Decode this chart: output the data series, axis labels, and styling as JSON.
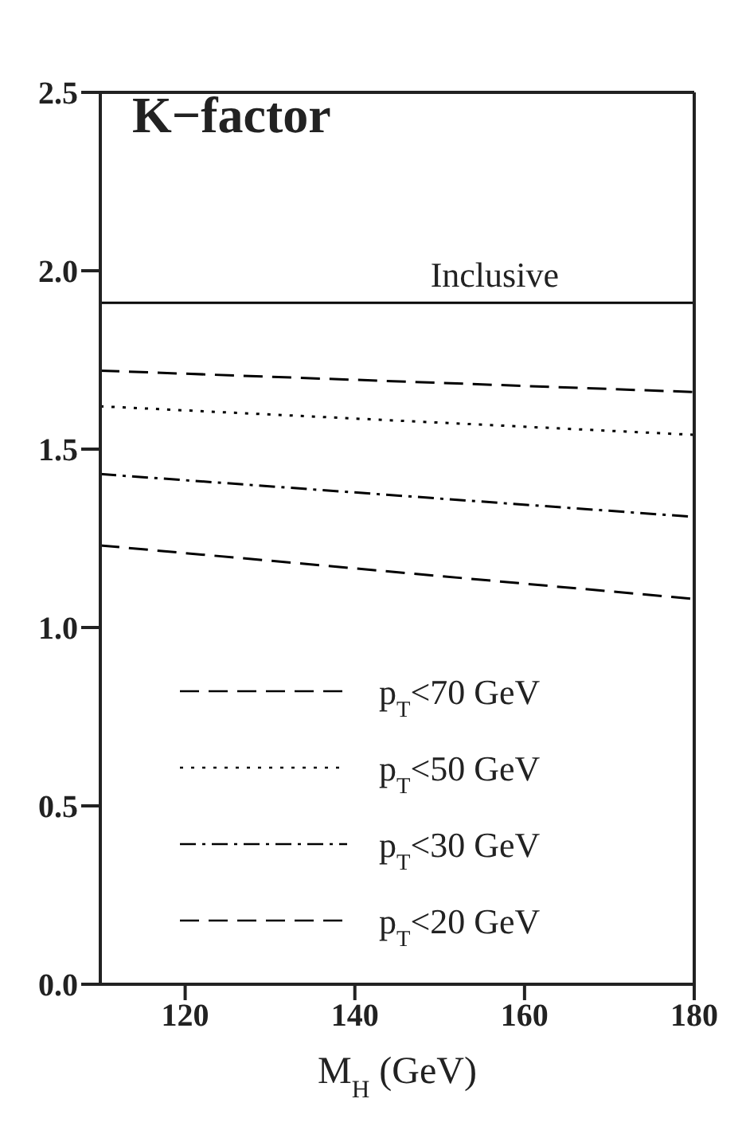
{
  "chart_data": {
    "type": "line",
    "title": "K−factor",
    "xlabel": "M$_{H}$ (GeV)",
    "x": [
      110,
      180
    ],
    "series": [
      {
        "name": "Inclusive",
        "color": "#000000",
        "line_style": "solid",
        "values": [
          1.91,
          1.91
        ]
      },
      {
        "name": "p$_{T}$<70 GeV",
        "color": "#000000",
        "line_style": "dashed",
        "values": [
          1.72,
          1.66
        ]
      },
      {
        "name": "p$_{T}$<50 GeV",
        "color": "#000000",
        "line_style": "dotted",
        "values": [
          1.62,
          1.54
        ]
      },
      {
        "name": "p$_{T}$<30 GeV",
        "color": "#000000",
        "line_style": "dashdot",
        "values": [
          1.43,
          1.31
        ]
      },
      {
        "name": "p$_{T}$<20 GeV",
        "color": "#000000",
        "line_style": "dashed",
        "values": [
          1.23,
          1.08
        ]
      }
    ],
    "xlim": [
      110,
      180
    ],
    "xticks": [
      120,
      140,
      160,
      180
    ],
    "ylim": [
      0,
      2.5
    ],
    "yticks": [
      {
        "value": 0,
        "label": "0.0"
      },
      0.5,
      {
        "value": 1,
        "label": "1.0"
      },
      1.5,
      {
        "value": 2,
        "label": "2.0"
      },
      2.5
    ],
    "legend": "bottom left",
    "marker": "none",
    "grid": false
  }
}
